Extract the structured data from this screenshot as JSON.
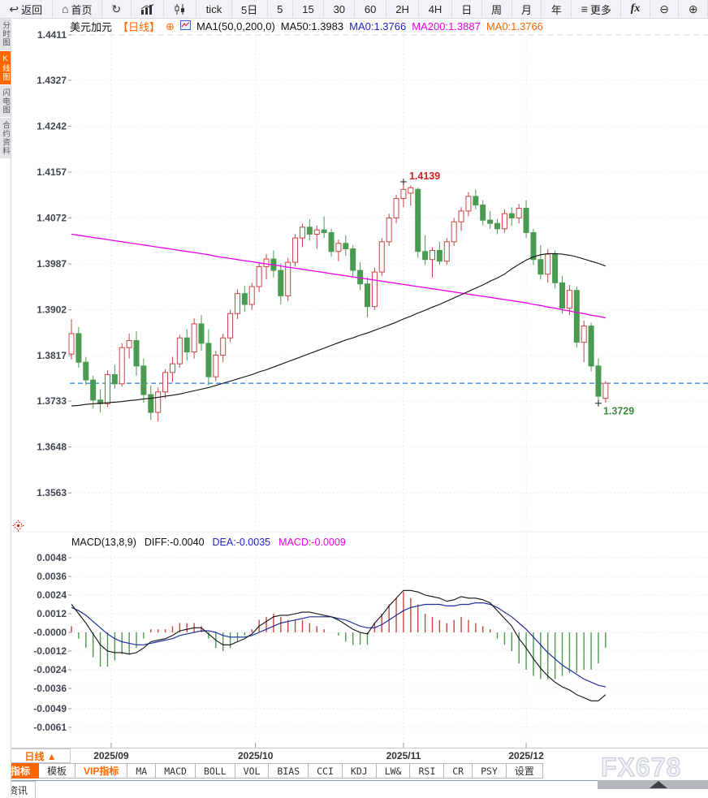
{
  "toolbar": {
    "items": [
      {
        "name": "back-button",
        "glyph": "↩",
        "label": "返回"
      },
      {
        "name": "home-button",
        "glyph": "⌂",
        "label": "首页"
      },
      {
        "name": "refresh-button",
        "glyph": "↻",
        "label": ""
      },
      {
        "name": "bar-chart-type-button",
        "svg": "bars",
        "label": ""
      },
      {
        "name": "candle-chart-type-button",
        "svg": "candles",
        "label": ""
      },
      {
        "name": "interval-tick-button",
        "label": "tick"
      },
      {
        "name": "interval-5d-button",
        "label": "5日"
      },
      {
        "name": "interval-5m-button",
        "label": "5"
      },
      {
        "name": "interval-15m-button",
        "label": "15"
      },
      {
        "name": "interval-30m-button",
        "label": "30"
      },
      {
        "name": "interval-60m-button",
        "label": "60"
      },
      {
        "name": "interval-2h-button",
        "label": "2H"
      },
      {
        "name": "interval-4h-button",
        "label": "4H"
      },
      {
        "name": "interval-day-button",
        "label": "日"
      },
      {
        "name": "interval-week-button",
        "label": "周"
      },
      {
        "name": "interval-month-button",
        "label": "月"
      },
      {
        "name": "interval-year-button",
        "label": "年"
      },
      {
        "name": "more-button",
        "glyph": "≡",
        "label": "更多"
      },
      {
        "name": "formula-button",
        "fx": true,
        "label": "fx"
      },
      {
        "name": "zoom-out-button",
        "glyph": "⊖",
        "label": ""
      },
      {
        "name": "zoom-in-button",
        "glyph": "⊕",
        "label": ""
      }
    ]
  },
  "sidebar": {
    "tabs": [
      {
        "name": "tab-time-share-chart",
        "label": "分时图",
        "active": false
      },
      {
        "name": "tab-kline-chart",
        "label": "K线图",
        "active": true
      },
      {
        "name": "tab-lightning-chart",
        "label": "闪电图",
        "active": false
      },
      {
        "name": "tab-contract-info",
        "label": "合约资料",
        "active": false
      }
    ]
  },
  "chart_header": {
    "symbol": "美元加元",
    "period_tag": "【日线】",
    "add_icon_glyph": "⊕",
    "ma_settings": "MA1(50,0,200,0)",
    "ma50": "MA50:1.3983",
    "ma0_blue": "MA0:1.3766",
    "ma200": "MA200:1.3887",
    "ma0_orange": "MA0:1.3766"
  },
  "macd_header": {
    "params": "MACD(13,8,9)",
    "diff": "DIFF:-0.0040",
    "dea": "DEA:-0.0035",
    "macd": "MACD:-0.0009"
  },
  "bottom": {
    "period_selector": "日线 ▲",
    "tabs": [
      {
        "name": "tab-indicator",
        "label": "指标",
        "state": "active"
      },
      {
        "name": "tab-template",
        "label": "模板",
        "state": ""
      },
      {
        "name": "tab-vip-indicator",
        "label": "VIP指标",
        "state": "vip"
      },
      {
        "name": "tab-ma",
        "label": "MA",
        "state": "latin"
      },
      {
        "name": "tab-macd",
        "label": "MACD",
        "state": "latin"
      },
      {
        "name": "tab-boll",
        "label": "BOLL",
        "state": "latin"
      },
      {
        "name": "tab-vol",
        "label": "VOL",
        "state": "latin"
      },
      {
        "name": "tab-bias",
        "label": "BIAS",
        "state": "latin"
      },
      {
        "name": "tab-cci",
        "label": "CCI",
        "state": "latin"
      },
      {
        "name": "tab-kdj",
        "label": "KDJ",
        "state": "latin"
      },
      {
        "name": "tab-lwr",
        "label": "LW&",
        "state": "latin"
      },
      {
        "name": "tab-rsi",
        "label": "RSI",
        "state": "latin"
      },
      {
        "name": "tab-cr",
        "label": "CR",
        "state": "latin"
      },
      {
        "name": "tab-psy",
        "label": "PSY",
        "state": "latin"
      },
      {
        "name": "tab-settings",
        "label": "设置",
        "state": ""
      }
    ],
    "news_tab": "资讯",
    "watermark": "FX678"
  },
  "colors": {
    "accent_orange": "#ff6600",
    "candle_up": "#c84444",
    "candle_down": "#4b9a52",
    "ma50": "#111111",
    "ma200": "#ee00ee",
    "diff_line": "#111111",
    "dea_line": "#1c2f9e",
    "price_line_blue": "#1f7fe0",
    "high_label_red": "#cc2222",
    "low_label_green": "#3d8b40"
  },
  "chart_data": [
    {
      "type": "candlestick",
      "title": "美元加元 日线",
      "legend": [
        "MA1(50,0,200,0)",
        "MA50",
        "MA200"
      ],
      "y_tick_labels": [
        "1.4411",
        "1.4327",
        "1.4242",
        "1.4157",
        "1.4072",
        "1.3987",
        "1.3902",
        "1.3817",
        "1.3733",
        "1.3648",
        "1.3563"
      ],
      "ylim": [
        1.3521,
        1.4453
      ],
      "x_ticks": [
        "2025/09",
        "2025/10",
        "2025/11",
        "2025/12"
      ],
      "x_tick_positions": [
        5.5,
        25.5,
        46,
        63
      ],
      "grid": true,
      "last_price_line": 1.3766,
      "high_label": {
        "text": "1.4139",
        "value": 1.4139,
        "candle_index": 46
      },
      "low_label": {
        "text": "1.3729",
        "value": 1.3729,
        "candle_index": 73
      },
      "candles_ohlc": [
        [
          1.382,
          1.3885,
          1.381,
          1.3858
        ],
        [
          1.3858,
          1.387,
          1.3795,
          1.3805
        ],
        [
          1.3805,
          1.3815,
          1.3762,
          1.3772
        ],
        [
          1.3772,
          1.378,
          1.372,
          1.3735
        ],
        [
          1.3735,
          1.3755,
          1.3712,
          1.3728
        ],
        [
          1.3728,
          1.379,
          1.3722,
          1.3782
        ],
        [
          1.3782,
          1.38,
          1.3756,
          1.3765
        ],
        [
          1.3765,
          1.384,
          1.376,
          1.3832
        ],
        [
          1.3832,
          1.3858,
          1.3812,
          1.3845
        ],
        [
          1.3845,
          1.3862,
          1.378,
          1.3798
        ],
        [
          1.3798,
          1.3812,
          1.373,
          1.3745
        ],
        [
          1.3745,
          1.3762,
          1.3698,
          1.3712
        ],
        [
          1.3712,
          1.3758,
          1.3695,
          1.375
        ],
        [
          1.375,
          1.3792,
          1.3738,
          1.3786
        ],
        [
          1.3786,
          1.3815,
          1.3768,
          1.3802
        ],
        [
          1.3802,
          1.3856,
          1.3795,
          1.385
        ],
        [
          1.385,
          1.3866,
          1.3808,
          1.3824
        ],
        [
          1.3824,
          1.3886,
          1.3812,
          1.3876
        ],
        [
          1.3876,
          1.3892,
          1.3826,
          1.384
        ],
        [
          1.384,
          1.3866,
          1.3762,
          1.3778
        ],
        [
          1.3778,
          1.3826,
          1.377,
          1.3818
        ],
        [
          1.3818,
          1.3858,
          1.3805,
          1.385
        ],
        [
          1.385,
          1.3902,
          1.3842,
          1.3895
        ],
        [
          1.3895,
          1.394,
          1.3885,
          1.3932
        ],
        [
          1.3932,
          1.3946,
          1.3898,
          1.3912
        ],
        [
          1.3912,
          1.3952,
          1.3902,
          1.3945
        ],
        [
          1.3945,
          1.3988,
          1.3935,
          1.3982
        ],
        [
          1.3982,
          1.4005,
          1.3958,
          1.3996
        ],
        [
          1.3996,
          1.4012,
          1.3962,
          1.3975
        ],
        [
          1.3975,
          1.3988,
          1.3912,
          1.3928
        ],
        [
          1.3928,
          1.3998,
          1.3918,
          1.399
        ],
        [
          1.399,
          1.4042,
          1.3982,
          1.4035
        ],
        [
          1.4035,
          1.4062,
          1.4018,
          1.4055
        ],
        [
          1.4055,
          1.407,
          1.403,
          1.4042
        ],
        [
          1.4042,
          1.4058,
          1.4015,
          1.405
        ],
        [
          1.405,
          1.4075,
          1.4035,
          1.4045
        ],
        [
          1.4045,
          1.4052,
          1.4,
          1.401
        ],
        [
          1.401,
          1.4032,
          1.3992,
          1.4025
        ],
        [
          1.4025,
          1.404,
          1.4002,
          1.4015
        ],
        [
          1.4015,
          1.4022,
          1.3962,
          1.3975
        ],
        [
          1.3975,
          1.399,
          1.3938,
          1.395
        ],
        [
          1.395,
          1.3962,
          1.3888,
          1.3908
        ],
        [
          1.3908,
          1.398,
          1.3902,
          1.3972
        ],
        [
          1.3972,
          1.4035,
          1.3965,
          1.4028
        ],
        [
          1.4028,
          1.408,
          1.402,
          1.4072
        ],
        [
          1.4072,
          1.4115,
          1.4062,
          1.4108
        ],
        [
          1.4108,
          1.4139,
          1.4092,
          1.4125
        ],
        [
          1.4118,
          1.4132,
          1.4095,
          1.4128
        ],
        [
          1.4125,
          1.4128,
          1.3998,
          1.401
        ],
        [
          1.401,
          1.404,
          1.3985,
          1.3995
        ],
        [
          1.3995,
          1.4018,
          1.3962,
          1.4012
        ],
        [
          1.4012,
          1.4028,
          1.3985,
          1.3992
        ],
        [
          1.3992,
          1.4035,
          1.3985,
          1.4028
        ],
        [
          1.4028,
          1.4072,
          1.402,
          1.4065
        ],
        [
          1.4065,
          1.4092,
          1.4048,
          1.4085
        ],
        [
          1.4085,
          1.412,
          1.4075,
          1.4112
        ],
        [
          1.4112,
          1.4125,
          1.4088,
          1.4096
        ],
        [
          1.4096,
          1.4105,
          1.4058,
          1.4068
        ],
        [
          1.4068,
          1.4085,
          1.4052,
          1.4062
        ],
        [
          1.4062,
          1.407,
          1.4042,
          1.4052
        ],
        [
          1.4052,
          1.4088,
          1.4045,
          1.408
        ],
        [
          1.408,
          1.4092,
          1.4058,
          1.4072
        ],
        [
          1.4072,
          1.4098,
          1.4062,
          1.409
        ],
        [
          1.409,
          1.4105,
          1.4035,
          1.4045
        ],
        [
          1.4045,
          1.4052,
          1.3985,
          1.3995
        ],
        [
          1.3995,
          1.4022,
          1.3958,
          1.3968
        ],
        [
          1.3968,
          1.4015,
          1.3952,
          1.4005
        ],
        [
          1.4005,
          1.4012,
          1.3942,
          1.3952
        ],
        [
          1.3952,
          1.3965,
          1.3895,
          1.3905
        ],
        [
          1.3905,
          1.3948,
          1.3892,
          1.3938
        ],
        [
          1.3938,
          1.3945,
          1.3832,
          1.3842
        ],
        [
          1.3842,
          1.3882,
          1.3805,
          1.3872
        ],
        [
          1.3872,
          1.3878,
          1.3788,
          1.3798
        ],
        [
          1.3798,
          1.3812,
          1.3729,
          1.3742
        ],
        [
          1.3738,
          1.377,
          1.373,
          1.3766
        ]
      ],
      "ma50": [
        1.3724,
        1.3725,
        1.3727,
        1.3728,
        1.3729,
        1.373,
        1.3731,
        1.3732,
        1.3734,
        1.3735,
        1.3737,
        1.3738,
        1.374,
        1.3742,
        1.3744,
        1.3746,
        1.3749,
        1.3752,
        1.3755,
        1.3758,
        1.3762,
        1.3766,
        1.377,
        1.3774,
        1.3778,
        1.3782,
        1.3787,
        1.3791,
        1.3796,
        1.3801,
        1.3806,
        1.3811,
        1.3816,
        1.3821,
        1.3826,
        1.3831,
        1.3836,
        1.3841,
        1.3846,
        1.385,
        1.3855,
        1.3859,
        1.3864,
        1.3869,
        1.3874,
        1.3879,
        1.3885,
        1.389,
        1.3896,
        1.3901,
        1.3907,
        1.3912,
        1.3918,
        1.3924,
        1.393,
        1.3936,
        1.3942,
        1.3948,
        1.3955,
        1.3961,
        1.3968,
        1.3978,
        1.3986,
        1.3994,
        1.4,
        1.4004,
        1.4006,
        1.4006,
        1.4005,
        1.4003,
        1.4,
        1.3996,
        1.3992,
        1.3988,
        1.3983
      ],
      "ma200": [
        1.4042,
        1.404,
        1.4038,
        1.4036,
        1.4034,
        1.4032,
        1.403,
        1.4028,
        1.4026,
        1.4024,
        1.4022,
        1.402,
        1.4018,
        1.4016,
        1.4014,
        1.4012,
        1.401,
        1.4008,
        1.4006,
        1.4004,
        1.4001,
        1.3999,
        1.3997,
        1.3995,
        1.3993,
        1.3991,
        1.3989,
        1.3987,
        1.3985,
        1.3983,
        1.3981,
        1.3979,
        1.3977,
        1.3975,
        1.3973,
        1.3971,
        1.3969,
        1.3967,
        1.3965,
        1.3963,
        1.3961,
        1.3959,
        1.3957,
        1.3955,
        1.3953,
        1.3951,
        1.3949,
        1.3947,
        1.3945,
        1.3943,
        1.3941,
        1.3939,
        1.3937,
        1.3935,
        1.3933,
        1.3931,
        1.3929,
        1.3927,
        1.3925,
        1.3923,
        1.3921,
        1.3919,
        1.3917,
        1.3915,
        1.3912,
        1.391,
        1.3907,
        1.3905,
        1.3902,
        1.39,
        1.3897,
        1.3895,
        1.3892,
        1.389,
        1.3887
      ]
    },
    {
      "type": "macd",
      "params": "MACD(13,8,9)",
      "y_tick_labels": [
        "0.0048",
        "0.0036",
        "0.0024",
        "0.0012",
        "-0.0000",
        "-0.0012",
        "-0.0024",
        "-0.0036",
        "-0.0049",
        "-0.0061"
      ],
      "hist_rule": "2*(DIFF-DEA)",
      "diff": [
        0.0018,
        0.0012,
        0.0006,
        -0.0001,
        -0.0008,
        -0.0012,
        -0.0013,
        -0.0013,
        -0.0014,
        -0.0013,
        -0.001,
        -0.0006,
        -0.0005,
        -0.0004,
        -0.0002,
        0.0001,
        0.0002,
        0.0003,
        0.0003,
        -0.0001,
        -0.0005,
        -0.0008,
        -0.0008,
        -0.0006,
        -0.0004,
        -0.0001,
        0.0004,
        0.0007,
        0.001,
        0.0011,
        0.0011,
        0.0012,
        0.0013,
        0.0013,
        0.0012,
        0.0011,
        0.001,
        0.0008,
        0.0005,
        0.0002,
        0.0,
        -0.0001,
        0.0006,
        0.0011,
        0.0017,
        0.0022,
        0.0027,
        0.0027,
        0.0026,
        0.0024,
        0.0023,
        0.0022,
        0.002,
        0.0021,
        0.0023,
        0.0022,
        0.0022,
        0.0021,
        0.0019,
        0.0014,
        0.0009,
        0.0004,
        -0.0004,
        -0.001,
        -0.0017,
        -0.0023,
        -0.0028,
        -0.0032,
        -0.0035,
        -0.0037,
        -0.004,
        -0.0042,
        -0.0044,
        -0.0044,
        -0.004
      ],
      "dea": [
        0.0016,
        0.0014,
        0.0011,
        0.0007,
        0.0003,
        -0.0001,
        -0.0004,
        -0.0006,
        -0.0007,
        -0.0008,
        -0.0008,
        -0.0007,
        -0.0006,
        -0.0005,
        -0.0004,
        -0.0002,
        -0.0001,
        0.0,
        0.0001,
        0.0001,
        0.0,
        -0.0002,
        -0.0003,
        -0.0003,
        -0.0003,
        -0.0002,
        0.0,
        0.0002,
        0.0004,
        0.0006,
        0.0007,
        0.0008,
        0.0009,
        0.001,
        0.001,
        0.001,
        0.001,
        0.0009,
        0.0008,
        0.0006,
        0.0004,
        0.0003,
        0.0003,
        0.0005,
        0.0008,
        0.0011,
        0.0014,
        0.0016,
        0.0017,
        0.0018,
        0.0018,
        0.0018,
        0.0017,
        0.0017,
        0.0018,
        0.0018,
        0.0019,
        0.0019,
        0.0018,
        0.0016,
        0.0013,
        0.001,
        0.0006,
        0.0002,
        -0.0003,
        -0.0008,
        -0.0013,
        -0.0017,
        -0.0021,
        -0.0024,
        -0.0027,
        -0.003,
        -0.0032,
        -0.0034,
        -0.0035
      ]
    }
  ]
}
